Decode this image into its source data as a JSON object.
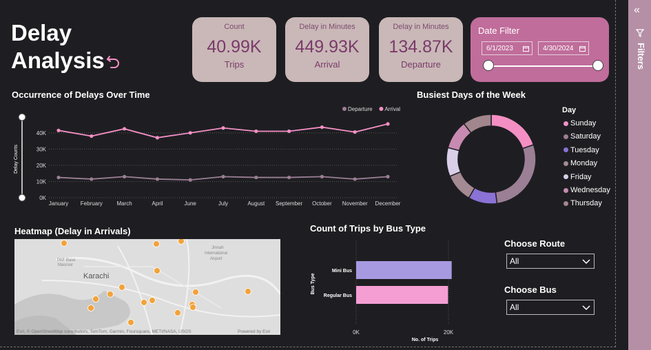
{
  "page": {
    "title_line1": "Delay",
    "title_line2": "Analysis"
  },
  "cards": [
    {
      "label": "Count",
      "value": "40.99K",
      "sub": "Trips"
    },
    {
      "label": "Delay in Minutes",
      "value": "449.93K",
      "sub": "Arrival"
    },
    {
      "label": "Delay in Minutes",
      "value": "134.87K",
      "sub": "Departure"
    }
  ],
  "date_filter": {
    "label": "Date Filter",
    "start": "6/1/2023",
    "end": "4/30/2024"
  },
  "line_chart": {
    "title": "Occurrence of Delays Over Time"
  },
  "donut_chart": {
    "title": "Busiest Days of the Week"
  },
  "heatmap": {
    "title": "Heatmap (Delay in Arrivals)",
    "labels": [
      "PAF Base",
      "Masroor",
      "Karachi",
      "Jinnah",
      "International",
      "Airport"
    ],
    "attribution": "Esri, © OpenStreetMap contributors, TomTom, Garmin, Foursquare, METI/NASA, USGS",
    "powered": "Powered by Esri"
  },
  "bar_chart": {
    "title": "Count of Trips by Bus Type"
  },
  "route_filter": {
    "label": "Choose Route",
    "value": "All"
  },
  "bus_filter": {
    "label": "Choose Bus",
    "value": "All"
  },
  "filters_pane": {
    "label": "Filters"
  },
  "colors": {
    "arrival": "#f48fc4",
    "departure": "#9b7f95",
    "accent": "#c06d9b",
    "card_bg": "#c9b8b7"
  },
  "chart_data": [
    {
      "type": "line",
      "title": "Occurrence of Delays Over Time",
      "ylabel": "Delay Counts",
      "categories": [
        "January",
        "February",
        "March",
        "April",
        "June",
        "July",
        "August",
        "September",
        "October",
        "November",
        "December"
      ],
      "yticks": [
        "0K",
        "10K",
        "20K",
        "30K",
        "40K"
      ],
      "ylim": [
        0,
        48000
      ],
      "legend": "top-right",
      "series": [
        {
          "name": "Departure",
          "values": [
            12500,
            11500,
            13000,
            11500,
            11000,
            13000,
            12500,
            12500,
            13000,
            11500,
            13000
          ]
        },
        {
          "name": "Arrival",
          "values": [
            41500,
            38000,
            42500,
            37000,
            40000,
            43000,
            41000,
            41000,
            43500,
            40500,
            45500
          ]
        }
      ]
    },
    {
      "type": "pie",
      "title": "Busiest Days of the Week",
      "legend_title": "Day",
      "legend": "right",
      "slices": [
        {
          "label": "Sunday",
          "value": 19,
          "color": "#f48fc4"
        },
        {
          "label": "Saturday",
          "value": 27,
          "color": "#9b7f95"
        },
        {
          "label": "Tuesday",
          "value": 10,
          "color": "#8a72d6"
        },
        {
          "label": "Monday",
          "value": 10,
          "color": "#a48a92"
        },
        {
          "label": "Friday",
          "value": 10,
          "color": "#d9cfe9"
        },
        {
          "label": "Wednesday",
          "value": 10,
          "color": "#c88ab0"
        },
        {
          "label": "Thursday",
          "value": 10,
          "color": "#a2868e"
        }
      ]
    },
    {
      "type": "bar",
      "title": "Count of Trips by Bus Type",
      "orientation": "horizontal",
      "xlabel": "No. of Trips",
      "ylabel": "Bus Type",
      "categories": [
        "Mini Bus",
        "Regular Bus"
      ],
      "values": [
        20700,
        19900
      ],
      "colors": [
        "#a79ae0",
        "#f49ed4"
      ],
      "xticks": [
        "0K",
        "20K"
      ],
      "xlim": [
        0,
        20000
      ]
    }
  ]
}
